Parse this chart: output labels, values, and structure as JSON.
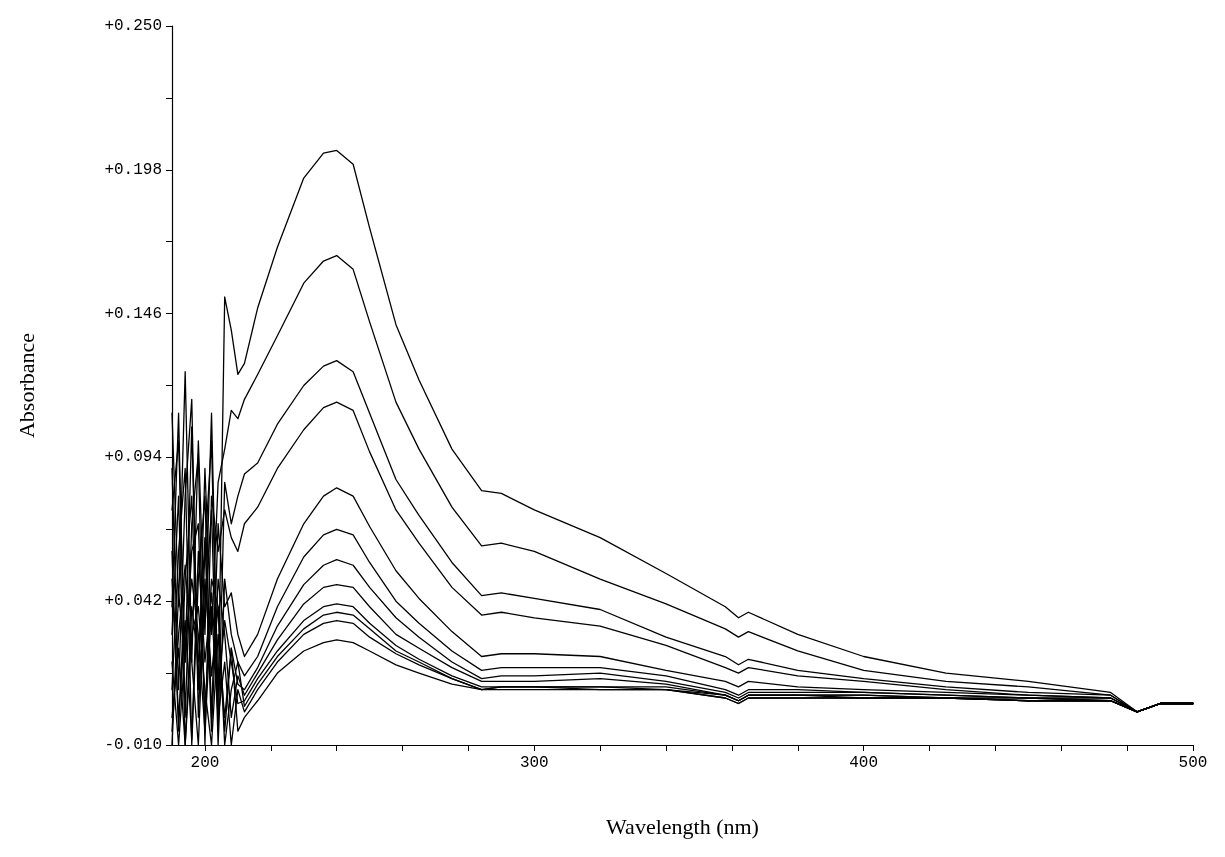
{
  "chart_data": {
    "type": "line",
    "xlabel": "Wavelength (nm)",
    "ylabel": "Absorbance",
    "xlim": [
      190,
      500
    ],
    "xticks": [
      200,
      {
        "value": 220,
        "label": null
      },
      {
        "value": 240,
        "label": null
      },
      {
        "value": 260,
        "label": null
      },
      {
        "value": 280,
        "label": null
      },
      300,
      {
        "value": 320,
        "label": null
      },
      {
        "value": 340,
        "label": null
      },
      {
        "value": 360,
        "label": null
      },
      {
        "value": 380,
        "label": null
      },
      400,
      {
        "value": 420,
        "label": null
      },
      {
        "value": 440,
        "label": null
      },
      {
        "value": 460,
        "label": null
      },
      {
        "value": 480,
        "label": null
      },
      500
    ],
    "ylim": [
      -0.01,
      0.25
    ],
    "yticks": [
      {
        "value": -0.01,
        "label": "-0.010"
      },
      {
        "value": 0.016,
        "label": null
      },
      {
        "value": 0.042,
        "label": "+0.042"
      },
      {
        "value": 0.068,
        "label": null
      },
      {
        "value": 0.094,
        "label": "+0.094"
      },
      {
        "value": 0.12,
        "label": null
      },
      {
        "value": 0.146,
        "label": "+0.146"
      },
      {
        "value": 0.172,
        "label": null
      },
      {
        "value": 0.198,
        "label": "+0.198"
      },
      {
        "value": 0.224,
        "label": null
      },
      {
        "value": 0.25,
        "label": "+0.250"
      }
    ],
    "x": [
      190,
      192,
      194,
      196,
      198,
      200,
      202,
      204,
      206,
      208,
      210,
      212,
      216,
      222,
      230,
      236,
      240,
      245,
      250,
      258,
      265,
      275,
      284,
      290,
      300,
      320,
      340,
      358,
      362,
      365,
      380,
      400,
      425,
      450,
      475,
      483,
      490,
      500
    ],
    "series": [
      {
        "color": "#000000",
        "values": [
          0.11,
          0.04,
          0.125,
          0.02,
          0.1,
          0.03,
          0.11,
          0.005,
          0.152,
          0.14,
          0.124,
          0.128,
          0.148,
          0.17,
          0.195,
          0.204,
          0.205,
          0.2,
          0.177,
          0.142,
          0.122,
          0.097,
          0.082,
          0.081,
          0.075,
          0.065,
          0.052,
          0.04,
          0.036,
          0.038,
          0.03,
          0.022,
          0.016,
          0.013,
          0.009,
          0.002,
          0.005,
          0.005
        ]
      },
      {
        "color": "#000000",
        "values": [
          0.075,
          0.1,
          0.02,
          0.105,
          0.01,
          0.09,
          0.03,
          0.085,
          0.097,
          0.111,
          0.108,
          0.115,
          0.124,
          0.138,
          0.157,
          0.165,
          0.167,
          0.162,
          0.143,
          0.114,
          0.097,
          0.076,
          0.062,
          0.063,
          0.06,
          0.05,
          0.041,
          0.032,
          0.029,
          0.031,
          0.024,
          0.017,
          0.013,
          0.011,
          0.008,
          0.002,
          0.005,
          0.005
        ]
      },
      {
        "color": "#000000",
        "values": [
          0.09,
          0.01,
          0.08,
          0.115,
          0.0,
          0.06,
          0.1,
          -0.005,
          0.085,
          0.07,
          0.08,
          0.088,
          0.092,
          0.106,
          0.12,
          0.127,
          0.129,
          0.125,
          0.11,
          0.086,
          0.073,
          0.056,
          0.044,
          0.045,
          0.043,
          0.039,
          0.029,
          0.022,
          0.019,
          0.021,
          0.017,
          0.014,
          0.011,
          0.009,
          0.008,
          0.002,
          0.005,
          0.005
        ]
      },
      {
        "color": "#000000",
        "values": [
          0.04,
          0.11,
          0.0,
          0.07,
          0.095,
          -0.01,
          0.08,
          0.06,
          0.075,
          0.065,
          0.06,
          0.07,
          0.076,
          0.09,
          0.104,
          0.112,
          0.114,
          0.111,
          0.096,
          0.075,
          0.063,
          0.047,
          0.037,
          0.038,
          0.036,
          0.033,
          0.026,
          0.018,
          0.016,
          0.018,
          0.015,
          0.013,
          0.01,
          0.008,
          0.007,
          0.002,
          0.005,
          0.005
        ]
      },
      {
        "color": "#000000",
        "values": [
          0.01,
          0.06,
          0.09,
          -0.01,
          0.05,
          0.08,
          0.0,
          0.07,
          0.04,
          0.045,
          0.03,
          0.022,
          0.03,
          0.05,
          0.07,
          0.08,
          0.083,
          0.08,
          0.069,
          0.053,
          0.043,
          0.031,
          0.022,
          0.023,
          0.023,
          0.022,
          0.017,
          0.013,
          0.011,
          0.013,
          0.011,
          0.01,
          0.009,
          0.008,
          0.007,
          0.002,
          0.005,
          0.005
        ]
      },
      {
        "color": "#000000",
        "values": [
          0.06,
          -0.005,
          0.05,
          0.08,
          0.01,
          0.04,
          0.075,
          -0.01,
          0.05,
          0.03,
          0.02,
          0.015,
          0.022,
          0.04,
          0.058,
          0.066,
          0.068,
          0.066,
          0.056,
          0.042,
          0.034,
          0.024,
          0.017,
          0.018,
          0.018,
          0.018,
          0.015,
          0.01,
          0.008,
          0.01,
          0.01,
          0.009,
          0.008,
          0.007,
          0.007,
          0.002,
          0.005,
          0.005
        ]
      },
      {
        "color": "#000000",
        "values": [
          -0.01,
          0.045,
          0.02,
          0.06,
          0.07,
          0.0,
          0.05,
          0.04,
          -0.005,
          0.025,
          0.012,
          0.01,
          0.018,
          0.033,
          0.048,
          0.055,
          0.057,
          0.055,
          0.047,
          0.036,
          0.029,
          0.02,
          0.014,
          0.015,
          0.015,
          0.016,
          0.013,
          0.009,
          0.007,
          0.009,
          0.009,
          0.009,
          0.008,
          0.007,
          0.006,
          0.002,
          0.005,
          0.005
        ]
      },
      {
        "color": "#000000",
        "values": [
          0.03,
          0.08,
          -0.01,
          0.04,
          0.02,
          0.065,
          -0.005,
          0.05,
          0.03,
          0.0,
          0.015,
          0.008,
          0.016,
          0.028,
          0.041,
          0.047,
          0.048,
          0.047,
          0.04,
          0.03,
          0.025,
          0.018,
          0.013,
          0.013,
          0.013,
          0.014,
          0.012,
          0.008,
          0.006,
          0.008,
          0.008,
          0.008,
          0.007,
          0.007,
          0.006,
          0.002,
          0.005,
          0.005
        ]
      },
      {
        "color": "#000000",
        "values": [
          0.05,
          0.0,
          0.035,
          -0.008,
          0.06,
          0.02,
          0.045,
          0.01,
          0.035,
          0.02,
          0.005,
          0.006,
          0.014,
          0.024,
          0.035,
          0.04,
          0.041,
          0.04,
          0.034,
          0.026,
          0.021,
          0.015,
          0.011,
          0.011,
          0.011,
          0.011,
          0.011,
          0.008,
          0.006,
          0.008,
          0.008,
          0.008,
          0.007,
          0.006,
          0.006,
          0.002,
          0.005,
          0.005
        ]
      },
      {
        "color": "#000000",
        "values": [
          -0.005,
          0.03,
          0.055,
          0.02,
          -0.01,
          0.05,
          0.015,
          0.04,
          -0.01,
          0.01,
          0.02,
          0.004,
          0.012,
          0.022,
          0.032,
          0.037,
          0.038,
          0.037,
          0.032,
          0.024,
          0.02,
          0.014,
          0.01,
          0.011,
          0.011,
          0.011,
          0.01,
          0.008,
          0.006,
          0.008,
          0.008,
          0.007,
          0.007,
          0.006,
          0.006,
          0.002,
          0.005,
          0.005
        ]
      },
      {
        "color": "#000000",
        "values": [
          0.02,
          -0.01,
          0.025,
          0.05,
          0.03,
          -0.005,
          0.04,
          0.0,
          0.02,
          -0.01,
          0.01,
          0.002,
          0.01,
          0.02,
          0.03,
          0.034,
          0.035,
          0.034,
          0.029,
          0.023,
          0.019,
          0.014,
          0.01,
          0.011,
          0.011,
          0.01,
          0.01,
          0.007,
          0.005,
          0.007,
          0.007,
          0.007,
          0.007,
          0.006,
          0.006,
          0.002,
          0.005,
          0.005
        ]
      },
      {
        "color": "#000000",
        "values": [
          0.0,
          0.025,
          -0.01,
          0.03,
          0.04,
          0.01,
          -0.01,
          0.03,
          0.0,
          0.025,
          -0.005,
          0.0,
          0.006,
          0.016,
          0.024,
          0.027,
          0.028,
          0.027,
          0.024,
          0.019,
          0.016,
          0.012,
          0.01,
          0.01,
          0.01,
          0.01,
          0.01,
          0.007,
          0.005,
          0.007,
          0.007,
          0.007,
          0.007,
          0.006,
          0.006,
          0.002,
          0.005,
          0.005
        ]
      }
    ]
  }
}
